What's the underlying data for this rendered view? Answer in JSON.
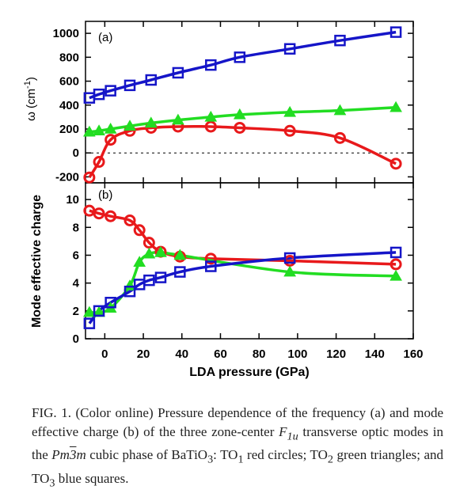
{
  "chart_data": [
    {
      "type": "line",
      "panel_label": "(a)",
      "ylabel_main": "ω (cm",
      "ylabel_sup": "-1",
      "ylabel_close": ")",
      "xlim": [
        -10,
        160
      ],
      "ylim": [
        -250,
        1100
      ],
      "yticks": [
        "-200",
        "0",
        "200",
        "400",
        "600",
        "800",
        "1000"
      ],
      "grid": false,
      "zero_line": "dashed",
      "series": [
        {
          "name": "TO1",
          "marker": "circle",
          "color": "#e8191b",
          "x": [
            -8,
            -3,
            3,
            13,
            24,
            38,
            55,
            70,
            96,
            122,
            151
          ],
          "y": [
            -205,
            -75,
            110,
            185,
            210,
            220,
            220,
            210,
            185,
            125,
            -90
          ]
        },
        {
          "name": "TO2",
          "marker": "triangle",
          "color": "#22dd22",
          "x": [
            -8,
            -3,
            3,
            13,
            24,
            38,
            55,
            70,
            96,
            122,
            151
          ],
          "y": [
            175,
            185,
            200,
            225,
            250,
            275,
            300,
            320,
            340,
            355,
            380
          ]
        },
        {
          "name": "TO3",
          "marker": "square",
          "color": "#1515c8",
          "x": [
            -8,
            -3,
            3,
            13,
            24,
            38,
            55,
            70,
            96,
            122,
            151
          ],
          "y": [
            460,
            490,
            520,
            565,
            610,
            670,
            735,
            800,
            870,
            940,
            1010
          ]
        }
      ]
    },
    {
      "type": "line",
      "panel_label": "(b)",
      "ylabel": "Mode effective charge",
      "xlabel": "LDA pressure (GPa)",
      "xlim": [
        -10,
        160
      ],
      "ylim": [
        0,
        11.2
      ],
      "xticks": [
        "0",
        "20",
        "40",
        "60",
        "80",
        "100",
        "120",
        "140",
        "160"
      ],
      "yticks": [
        "0",
        "2",
        "4",
        "6",
        "8",
        "10"
      ],
      "grid": false,
      "series": [
        {
          "name": "TO1",
          "marker": "circle",
          "color": "#e8191b",
          "x": [
            -8,
            -3,
            3,
            13,
            18,
            23,
            29,
            39,
            55,
            96,
            151
          ],
          "y": [
            9.2,
            9.0,
            8.8,
            8.5,
            7.8,
            6.9,
            6.25,
            5.9,
            5.75,
            5.6,
            5.35
          ]
        },
        {
          "name": "TO2",
          "marker": "triangle",
          "color": "#22dd22",
          "x": [
            -8,
            -3,
            3,
            13,
            18,
            23,
            29,
            39,
            96,
            151
          ],
          "y": [
            1.9,
            1.9,
            2.2,
            3.8,
            5.5,
            6.1,
            6.2,
            6.0,
            4.8,
            4.5
          ]
        },
        {
          "name": "TO3",
          "marker": "square",
          "color": "#1515c8",
          "x": [
            -8,
            -3,
            3,
            13,
            18,
            23,
            29,
            39,
            55,
            96,
            151
          ],
          "y": [
            1.1,
            2.0,
            2.6,
            3.4,
            3.9,
            4.2,
            4.4,
            4.8,
            5.2,
            5.8,
            6.2
          ]
        }
      ]
    }
  ],
  "caption": {
    "fig_label": "FIG. 1.",
    "text_1": "(Color online) Pressure dependence of the frequency (a) and mode effective charge (b) of the three zone-center",
    "symbol_F": "F",
    "symbol_F_sub": "1u",
    "text_2": "transverse optic modes in the",
    "space_group_a": "Pm",
    "space_group_bar": "3",
    "space_group_b": "m",
    "text_3": "cubic phase of BaTiO",
    "formula_sub": "3",
    "text_4": ": TO",
    "to1_sub": "1",
    "text_5": "red circles; TO",
    "to2_sub": "2",
    "text_6": "green triangles; and TO",
    "to3_sub": "3",
    "text_7": "blue squares."
  }
}
